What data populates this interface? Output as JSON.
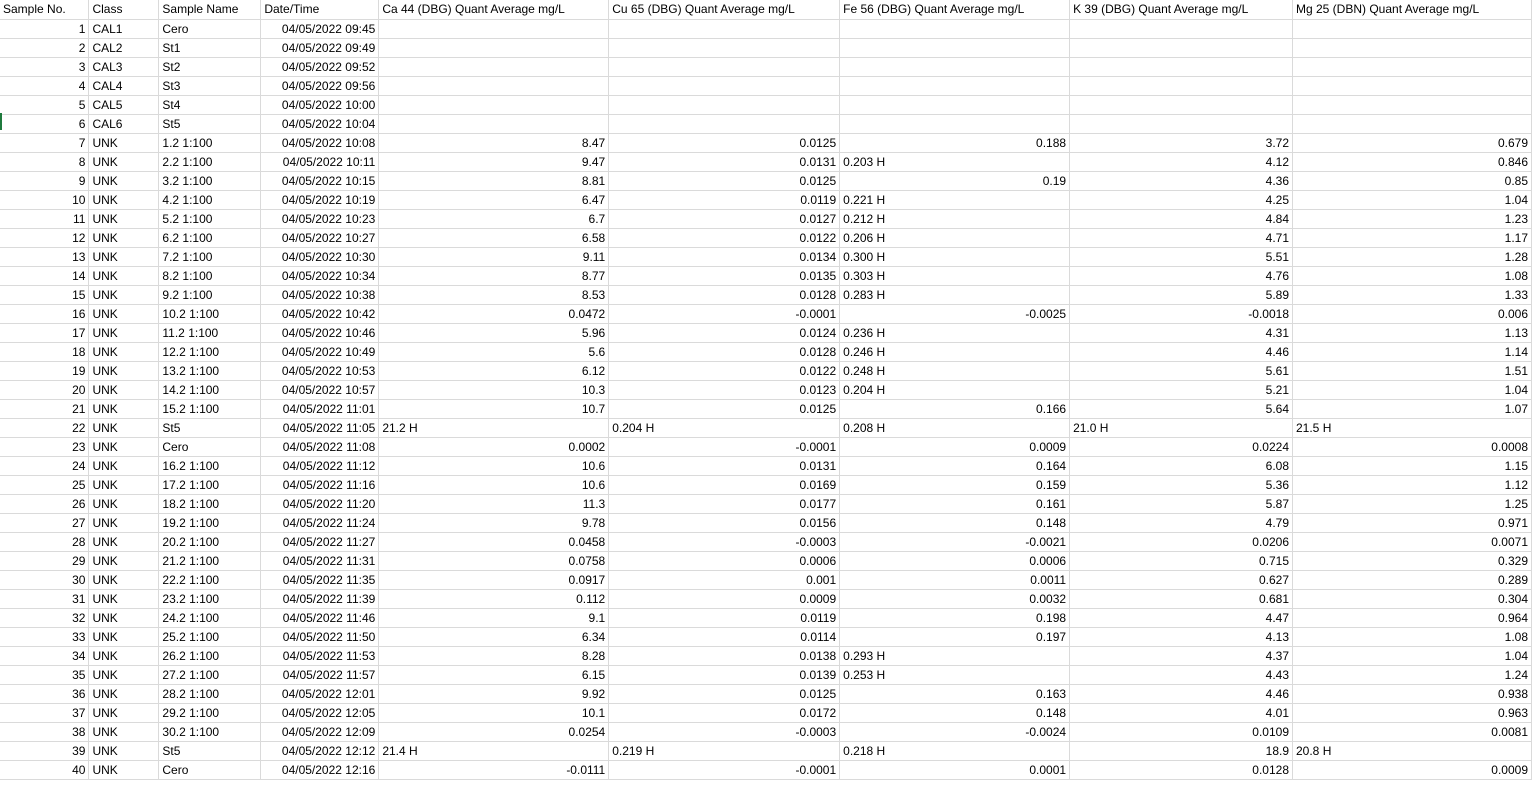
{
  "columns": [
    "Sample No.",
    "Class",
    "Sample Name",
    "Date/Time",
    "Ca 44 (DBG) Quant Average mg/L",
    "Cu 65 (DBG) Quant Average mg/L",
    "Fe 56 (DBG) Quant Average mg/L",
    "K 39 (DBG) Quant Average mg/L",
    "Mg 25 (DBN) Quant Average mg/L"
  ],
  "rows": [
    [
      "1",
      "CAL1",
      "Cero",
      "04/05/2022 09:45",
      "",
      "",
      "",
      "",
      ""
    ],
    [
      "2",
      "CAL2",
      "St1",
      "04/05/2022 09:49",
      "",
      "",
      "",
      "",
      ""
    ],
    [
      "3",
      "CAL3",
      "St2",
      "04/05/2022 09:52",
      "",
      "",
      "",
      "",
      ""
    ],
    [
      "4",
      "CAL4",
      "St3",
      "04/05/2022 09:56",
      "",
      "",
      "",
      "",
      ""
    ],
    [
      "5",
      "CAL5",
      "St4",
      "04/05/2022 10:00",
      "",
      "",
      "",
      "",
      ""
    ],
    [
      "6",
      "CAL6",
      "St5",
      "04/05/2022 10:04",
      "",
      "",
      "",
      "",
      ""
    ],
    [
      "7",
      "UNK",
      "1.2 1:100",
      "04/05/2022 10:08",
      "8.47",
      "0.0125",
      "0.188",
      "3.72",
      "0.679"
    ],
    [
      "8",
      "UNK",
      "2.2 1:100",
      "04/05/2022 10:11",
      "9.47",
      "0.0131",
      "0.203 H",
      "4.12",
      "0.846"
    ],
    [
      "9",
      "UNK",
      "3.2 1:100",
      "04/05/2022 10:15",
      "8.81",
      "0.0125",
      "0.19",
      "4.36",
      "0.85"
    ],
    [
      "10",
      "UNK",
      "4.2 1:100",
      "04/05/2022 10:19",
      "6.47",
      "0.0119",
      "0.221 H",
      "4.25",
      "1.04"
    ],
    [
      "11",
      "UNK",
      "5.2 1:100",
      "04/05/2022 10:23",
      "6.7",
      "0.0127",
      "0.212 H",
      "4.84",
      "1.23"
    ],
    [
      "12",
      "UNK",
      "6.2 1:100",
      "04/05/2022 10:27",
      "6.58",
      "0.0122",
      "0.206 H",
      "4.71",
      "1.17"
    ],
    [
      "13",
      "UNK",
      "7.2 1:100",
      "04/05/2022 10:30",
      "9.11",
      "0.0134",
      "0.300 H",
      "5.51",
      "1.28"
    ],
    [
      "14",
      "UNK",
      "8.2 1:100",
      "04/05/2022 10:34",
      "8.77",
      "0.0135",
      "0.303 H",
      "4.76",
      "1.08"
    ],
    [
      "15",
      "UNK",
      "9.2 1:100",
      "04/05/2022 10:38",
      "8.53",
      "0.0128",
      "0.283 H",
      "5.89",
      "1.33"
    ],
    [
      "16",
      "UNK",
      "10.2 1:100",
      "04/05/2022 10:42",
      "0.0472",
      "-0.0001",
      "-0.0025",
      "-0.0018",
      "0.006"
    ],
    [
      "17",
      "UNK",
      "11.2 1:100",
      "04/05/2022 10:46",
      "5.96",
      "0.0124",
      "0.236 H",
      "4.31",
      "1.13"
    ],
    [
      "18",
      "UNK",
      "12.2 1:100",
      "04/05/2022 10:49",
      "5.6",
      "0.0128",
      "0.246 H",
      "4.46",
      "1.14"
    ],
    [
      "19",
      "UNK",
      "13.2 1:100",
      "04/05/2022 10:53",
      "6.12",
      "0.0122",
      "0.248 H",
      "5.61",
      "1.51"
    ],
    [
      "20",
      "UNK",
      "14.2 1:100",
      "04/05/2022 10:57",
      "10.3",
      "0.0123",
      "0.204 H",
      "5.21",
      "1.04"
    ],
    [
      "21",
      "UNK",
      "15.2 1:100",
      "04/05/2022 11:01",
      "10.7",
      "0.0125",
      "0.166",
      "5.64",
      "1.07"
    ],
    [
      "22",
      "UNK",
      "St5",
      "04/05/2022 11:05",
      "21.2 H",
      "0.204 H",
      "0.208 H",
      "21.0 H",
      "21.5 H"
    ],
    [
      "23",
      "UNK",
      "Cero",
      "04/05/2022 11:08",
      "0.0002",
      "-0.0001",
      "0.0009",
      "0.0224",
      "0.0008"
    ],
    [
      "24",
      "UNK",
      "16.2 1:100",
      "04/05/2022 11:12",
      "10.6",
      "0.0131",
      "0.164",
      "6.08",
      "1.15"
    ],
    [
      "25",
      "UNK",
      "17.2 1:100",
      "04/05/2022 11:16",
      "10.6",
      "0.0169",
      "0.159",
      "5.36",
      "1.12"
    ],
    [
      "26",
      "UNK",
      "18.2 1:100",
      "04/05/2022 11:20",
      "11.3",
      "0.0177",
      "0.161",
      "5.87",
      "1.25"
    ],
    [
      "27",
      "UNK",
      "19.2 1:100",
      "04/05/2022 11:24",
      "9.78",
      "0.0156",
      "0.148",
      "4.79",
      "0.971"
    ],
    [
      "28",
      "UNK",
      "20.2 1:100",
      "04/05/2022 11:27",
      "0.0458",
      "-0.0003",
      "-0.0021",
      "0.0206",
      "0.0071"
    ],
    [
      "29",
      "UNK",
      "21.2 1:100",
      "04/05/2022 11:31",
      "0.0758",
      "0.0006",
      "0.0006",
      "0.715",
      "0.329"
    ],
    [
      "30",
      "UNK",
      "22.2 1:100",
      "04/05/2022 11:35",
      "0.0917",
      "0.001",
      "0.0011",
      "0.627",
      "0.289"
    ],
    [
      "31",
      "UNK",
      "23.2 1:100",
      "04/05/2022 11:39",
      "0.112",
      "0.0009",
      "0.0032",
      "0.681",
      "0.304"
    ],
    [
      "32",
      "UNK",
      "24.2 1:100",
      "04/05/2022 11:46",
      "9.1",
      "0.0119",
      "0.198",
      "4.47",
      "0.964"
    ],
    [
      "33",
      "UNK",
      "25.2 1:100",
      "04/05/2022 11:50",
      "6.34",
      "0.0114",
      "0.197",
      "4.13",
      "1.08"
    ],
    [
      "34",
      "UNK",
      "26.2 1:100",
      "04/05/2022 11:53",
      "8.28",
      "0.0138",
      "0.293 H",
      "4.37",
      "1.04"
    ],
    [
      "35",
      "UNK",
      "27.2 1:100",
      "04/05/2022 11:57",
      "6.15",
      "0.0139",
      "0.253 H",
      "4.43",
      "1.24"
    ],
    [
      "36",
      "UNK",
      "28.2 1:100",
      "04/05/2022 12:01",
      "9.92",
      "0.0125",
      "0.163",
      "4.46",
      "0.938"
    ],
    [
      "37",
      "UNK",
      "29.2 1:100",
      "04/05/2022 12:05",
      "10.1",
      "0.0172",
      "0.148",
      "4.01",
      "0.963"
    ],
    [
      "38",
      "UNK",
      "30.2 1:100",
      "04/05/2022 12:09",
      "0.0254",
      "-0.0003",
      "-0.0024",
      "0.0109",
      "0.0081"
    ],
    [
      "39",
      "UNK",
      "St5",
      "04/05/2022 12:12",
      "21.4 H",
      "0.219 H",
      "0.218 H",
      "18.9",
      "20.8 H"
    ],
    [
      "40",
      "UNK",
      "Cero",
      "04/05/2022 12:16",
      "-0.0111",
      "-0.0001",
      "0.0001",
      "0.0128",
      "0.0009"
    ]
  ]
}
